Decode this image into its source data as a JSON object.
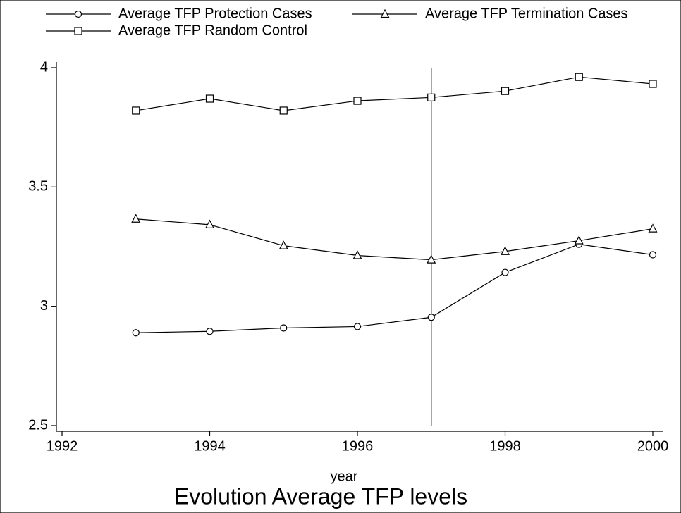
{
  "chart_data": {
    "type": "line",
    "title": "Evolution Average TFP levels",
    "x_label": "year",
    "x": [
      1993,
      1994,
      1995,
      1996,
      1997,
      1998,
      1999,
      2000
    ],
    "series": [
      {
        "name": "Average TFP Protection Cases",
        "color": "#000000",
        "marker": "circle",
        "values": [
          2.889,
          2.895,
          2.909,
          2.915,
          2.954,
          3.142,
          3.26,
          3.216
        ]
      },
      {
        "name": "Average TFP Termination Cases",
        "color": "#000000",
        "marker": "triangle",
        "values": [
          3.366,
          3.342,
          3.254,
          3.213,
          3.195,
          3.23,
          3.275,
          3.325
        ]
      },
      {
        "name": "Average TFP Random Control",
        "color": "#000000",
        "marker": "square",
        "values": [
          3.82,
          3.87,
          3.82,
          3.861,
          3.875,
          3.902,
          3.961,
          3.932
        ]
      }
    ],
    "vline": 1997,
    "xlim": [
      1992,
      2000
    ],
    "xticks": [
      1992,
      1994,
      1996,
      1998,
      2000
    ],
    "ylim": [
      2.5,
      4
    ],
    "yticks": [
      {
        "value": 2.5,
        "label": "2.5"
      },
      3,
      {
        "value": 3.5,
        "label": "3.5"
      },
      4
    ],
    "grid": false,
    "legend": "top"
  }
}
